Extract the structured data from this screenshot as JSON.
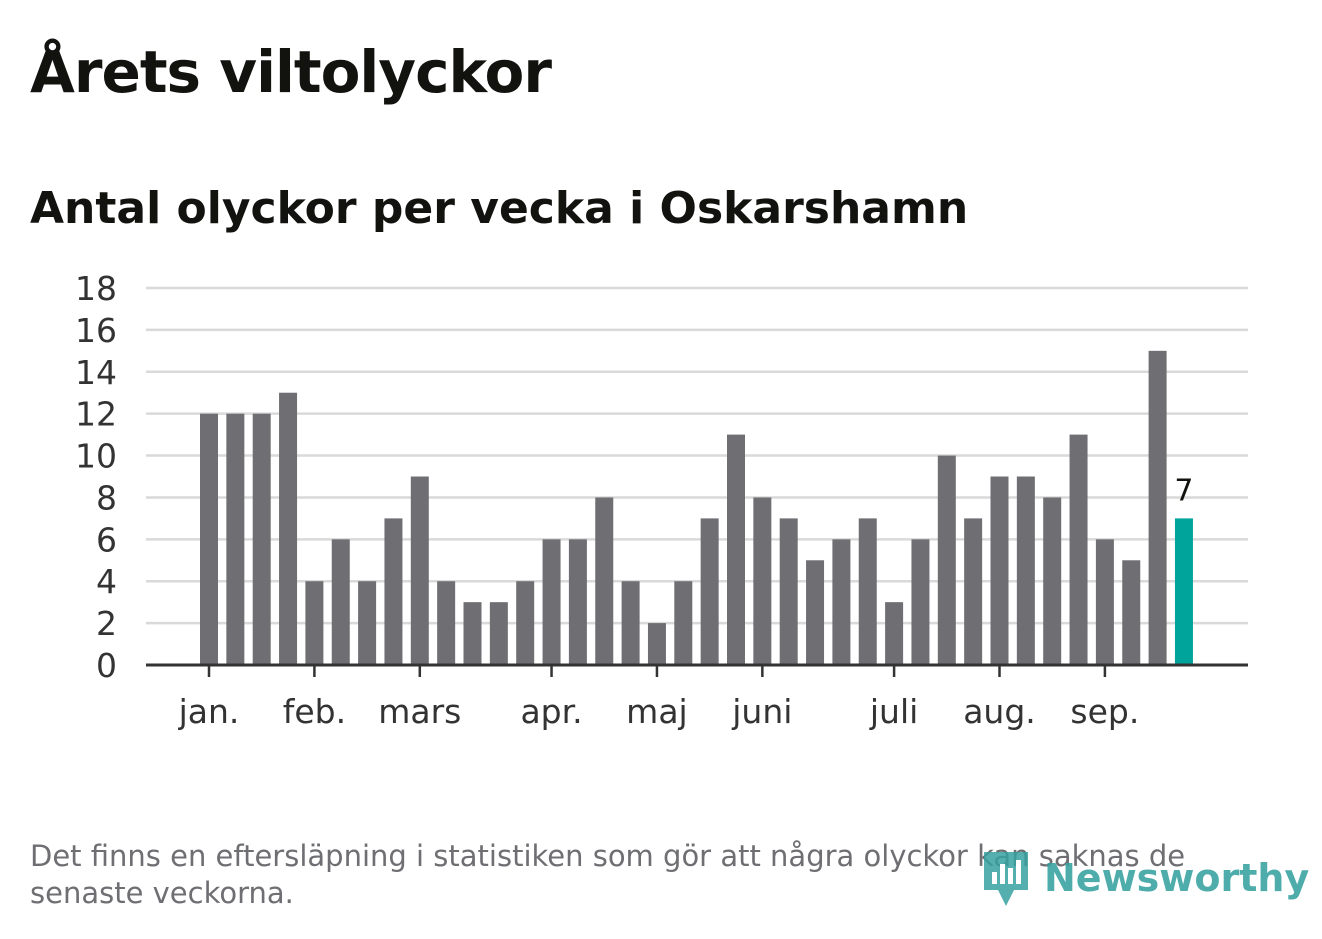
{
  "title": "Årets viltolyckor",
  "subtitle": "Antal olyckor per vecka i Oskarshamn",
  "footnote": "Det finns en eftersläpning i statistiken som gör att några olyckor kan saknas de senaste veckorna.",
  "logo": {
    "text": "Newsworthy",
    "icon": "newsworthy-logo-icon",
    "color": "#36a1a0"
  },
  "colors": {
    "bar": "#6f6e73",
    "highlight": "#00a49b",
    "grid": "#d9d9d9",
    "axis": "#333333",
    "text": "#12130f",
    "tick_text": "#333333",
    "footnote": "#6f6e73"
  },
  "chart_data": {
    "type": "bar",
    "title": "Antal olyckor per vecka i Oskarshamn",
    "xlabel": "",
    "ylabel": "",
    "ylim": [
      0,
      18
    ],
    "yticks": [
      0,
      2,
      4,
      6,
      8,
      10,
      12,
      14,
      16,
      18
    ],
    "grid": true,
    "legend": "none",
    "week_count": 38,
    "values": [
      12,
      12,
      12,
      13,
      4,
      6,
      4,
      7,
      9,
      4,
      3,
      3,
      4,
      6,
      6,
      8,
      4,
      2,
      4,
      7,
      11,
      8,
      7,
      5,
      6,
      7,
      3,
      6,
      10,
      7,
      9,
      9,
      8,
      11,
      6,
      5,
      15,
      7
    ],
    "month_ticks": [
      {
        "label": "jan.",
        "week_index": 0
      },
      {
        "label": "feb.",
        "week_index": 4
      },
      {
        "label": "mars",
        "week_index": 8
      },
      {
        "label": "apr.",
        "week_index": 13
      },
      {
        "label": "maj",
        "week_index": 17
      },
      {
        "label": "juni",
        "week_index": 21
      },
      {
        "label": "juli",
        "week_index": 26
      },
      {
        "label": "aug.",
        "week_index": 30
      },
      {
        "label": "sep.",
        "week_index": 34
      }
    ],
    "highlight": {
      "week_index": 37,
      "label": "7"
    }
  }
}
